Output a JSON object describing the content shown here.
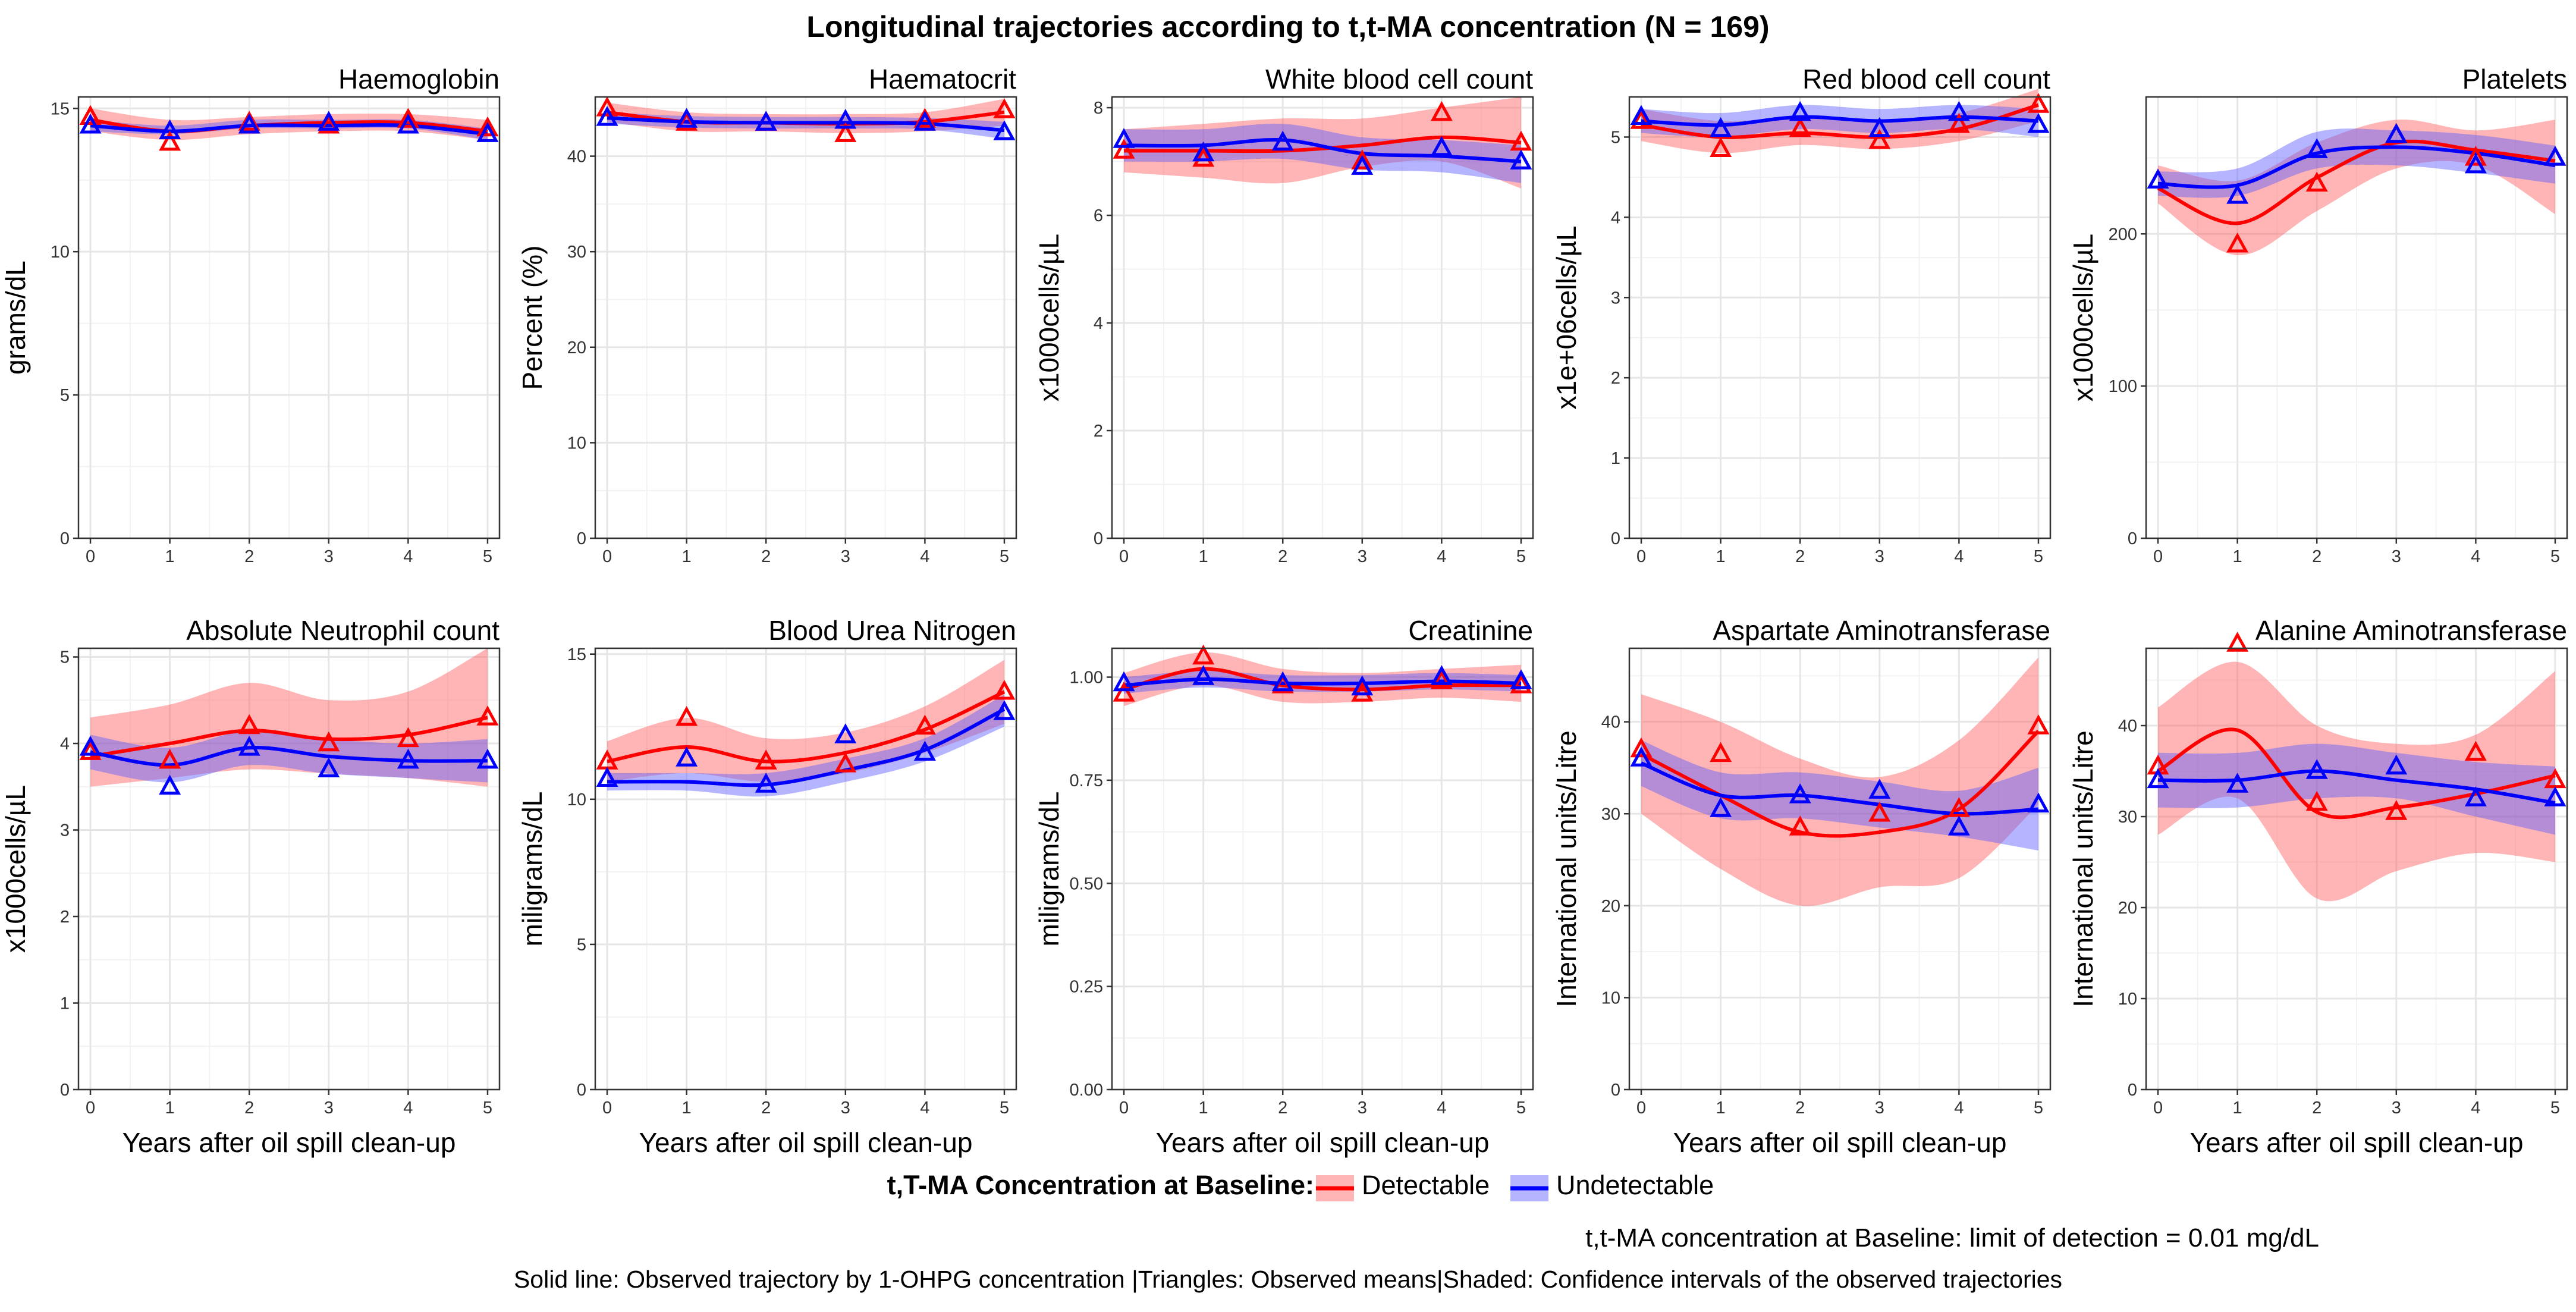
{
  "title": "Longitudinal trajectories according to t,t-MA concentration (N = 169)",
  "colors": {
    "detectable": "#ff0000",
    "undetectable": "#0000ff",
    "detectable_ribbon": "#ff5a5a",
    "undetectable_ribbon": "#5a5aff",
    "grid": "#e6e6e6",
    "border": "#333333"
  },
  "legend": {
    "title": "t,T-MA Concentration at Baseline:",
    "items": [
      {
        "label": "Detectable",
        "color": "#ff0000"
      },
      {
        "label": "Undetectable",
        "color": "#0000ff"
      }
    ]
  },
  "caption_line1": "t,t-MA concentration at Baseline: limit of detection = 0.01 mg/dL",
  "caption_line2": "Solid line: Observed trajectory by 1-OHPG concentration |Triangles: Observed means|Shaded: Confidence intervals of the observed trajectories",
  "chart_data": [
    {
      "type": "line",
      "title": "Haemoglobin",
      "xlabel": "",
      "ylabel": "grams/dL",
      "x": [
        0,
        1,
        2,
        3,
        4,
        5
      ],
      "xticks": [
        "0",
        "1",
        "2",
        "3",
        "4",
        "5"
      ],
      "ylim": [
        0,
        15.4
      ],
      "yticks": [
        0,
        5,
        10,
        15
      ],
      "ytick_labels": [
        "0",
        "5",
        "10",
        "15"
      ],
      "series": [
        {
          "name": "Detectable",
          "means": [
            14.7,
            13.8,
            14.5,
            14.4,
            14.6,
            14.3
          ],
          "line": [
            14.6,
            14.2,
            14.4,
            14.5,
            14.5,
            14.2
          ],
          "lower": [
            14.2,
            13.9,
            14.1,
            14.2,
            14.2,
            13.9
          ],
          "upper": [
            15.0,
            14.6,
            14.7,
            14.8,
            14.8,
            14.6
          ]
        },
        {
          "name": "Undetectable",
          "means": [
            14.4,
            14.2,
            14.4,
            14.5,
            14.4,
            14.1
          ],
          "line": [
            14.4,
            14.2,
            14.4,
            14.4,
            14.4,
            14.1
          ],
          "lower": [
            14.2,
            14.1,
            14.3,
            14.3,
            14.3,
            13.9
          ],
          "upper": [
            14.6,
            14.4,
            14.6,
            14.6,
            14.6,
            14.3
          ]
        }
      ]
    },
    {
      "type": "line",
      "title": "Haematocrit",
      "xlabel": "",
      "ylabel": "Percent (%)",
      "x": [
        0,
        1,
        2,
        3,
        4,
        5
      ],
      "xticks": [
        "0",
        "1",
        "2",
        "3",
        "4",
        "5"
      ],
      "ylim": [
        0,
        46.2
      ],
      "yticks": [
        0,
        10,
        20,
        30,
        40
      ],
      "ytick_labels": [
        "0",
        "10",
        "20",
        "30",
        "40"
      ],
      "series": [
        {
          "name": "Detectable",
          "means": [
            45.0,
            43.5,
            43.5,
            42.3,
            43.8,
            44.8
          ],
          "line": [
            44.6,
            43.6,
            43.5,
            43.4,
            43.6,
            44.6
          ],
          "lower": [
            43.6,
            42.6,
            42.6,
            42.4,
            42.6,
            43.2
          ],
          "upper": [
            45.6,
            44.6,
            44.4,
            44.4,
            44.6,
            46.0
          ]
        },
        {
          "name": "Undetectable",
          "means": [
            44.0,
            43.8,
            43.5,
            43.7,
            43.5,
            42.5
          ],
          "line": [
            44.0,
            43.6,
            43.5,
            43.5,
            43.4,
            42.7
          ],
          "lower": [
            43.4,
            43.0,
            42.9,
            42.9,
            42.8,
            41.8
          ],
          "upper": [
            44.6,
            44.2,
            44.1,
            44.1,
            44.0,
            43.6
          ]
        }
      ]
    },
    {
      "type": "line",
      "title": "White blood cell count",
      "xlabel": "",
      "ylabel": "x1000cells/µL",
      "x": [
        0,
        1,
        2,
        3,
        4,
        5
      ],
      "xticks": [
        "0",
        "1",
        "2",
        "3",
        "4",
        "5"
      ],
      "ylim": [
        0,
        8.2
      ],
      "yticks": [
        0,
        2,
        4,
        6,
        8
      ],
      "ytick_labels": [
        "0",
        "2",
        "4",
        "6",
        "8"
      ],
      "series": [
        {
          "name": "Detectable",
          "means": [
            7.2,
            7.05,
            7.35,
            7.0,
            7.9,
            7.35
          ],
          "line": [
            7.2,
            7.2,
            7.2,
            7.3,
            7.45,
            7.35
          ],
          "lower": [
            6.8,
            6.7,
            6.6,
            6.9,
            7.0,
            6.5
          ],
          "upper": [
            7.6,
            7.7,
            7.8,
            7.8,
            8.0,
            8.2
          ]
        },
        {
          "name": "Undetectable",
          "means": [
            7.4,
            7.15,
            7.35,
            6.9,
            7.25,
            7.0
          ],
          "line": [
            7.3,
            7.3,
            7.4,
            7.15,
            7.1,
            7.0
          ],
          "lower": [
            7.0,
            7.0,
            7.05,
            6.85,
            6.8,
            6.6
          ],
          "upper": [
            7.6,
            7.6,
            7.7,
            7.45,
            7.4,
            7.3
          ]
        }
      ]
    },
    {
      "type": "line",
      "title": "Red blood cell count",
      "xlabel": "",
      "ylabel": "x1e+06cells/µL",
      "x": [
        0,
        1,
        2,
        3,
        4,
        5
      ],
      "xticks": [
        "0",
        "1",
        "2",
        "3",
        "4",
        "5"
      ],
      "ylim": [
        0,
        5.5
      ],
      "yticks": [
        0,
        1,
        2,
        3,
        4,
        5
      ],
      "ytick_labels": [
        "0",
        "1",
        "2",
        "3",
        "4",
        "5"
      ],
      "series": [
        {
          "name": "Detectable",
          "means": [
            5.2,
            4.85,
            5.1,
            4.95,
            5.15,
            5.4
          ],
          "line": [
            5.15,
            5.0,
            5.05,
            5.0,
            5.1,
            5.4
          ],
          "lower": [
            4.95,
            4.8,
            4.9,
            4.85,
            4.95,
            5.2
          ],
          "upper": [
            5.35,
            5.2,
            5.25,
            5.2,
            5.3,
            5.6
          ]
        },
        {
          "name": "Undetectable",
          "means": [
            5.25,
            5.1,
            5.3,
            5.1,
            5.3,
            5.15
          ],
          "line": [
            5.2,
            5.15,
            5.25,
            5.2,
            5.25,
            5.2
          ],
          "lower": [
            5.05,
            5.0,
            5.1,
            5.05,
            5.1,
            5.0
          ],
          "upper": [
            5.35,
            5.3,
            5.4,
            5.35,
            5.4,
            5.35
          ]
        }
      ]
    },
    {
      "type": "line",
      "title": "Platelets",
      "xlabel": "",
      "ylabel": "x1000cells/µL",
      "x": [
        0,
        1,
        2,
        3,
        4,
        5
      ],
      "xticks": [
        "0",
        "1",
        "2",
        "3",
        "4",
        "5"
      ],
      "ylim": [
        0,
        290
      ],
      "yticks": [
        0,
        100,
        200
      ],
      "ytick_labels": [
        "0",
        "100",
        "200"
      ],
      "series": [
        {
          "name": "Detectable",
          "means": [
            235,
            193,
            233,
            265,
            250,
            250
          ],
          "line": [
            230,
            207,
            237,
            260,
            255,
            248
          ],
          "lower": [
            220,
            186,
            215,
            243,
            245,
            213
          ],
          "upper": [
            245,
            235,
            260,
            275,
            268,
            275
          ]
        },
        {
          "name": "Undetectable",
          "means": [
            235,
            225,
            255,
            265,
            245,
            250
          ],
          "line": [
            233,
            232,
            253,
            257,
            253,
            245
          ],
          "lower": [
            225,
            225,
            243,
            245,
            240,
            233
          ],
          "upper": [
            241,
            243,
            267,
            268,
            265,
            258
          ]
        }
      ]
    },
    {
      "type": "line",
      "title": "Absolute Neutrophil count",
      "xlabel": "Years after oil spill clean-up",
      "ylabel": "x1000cells/µL",
      "x": [
        0,
        1,
        2,
        3,
        4,
        5
      ],
      "xticks": [
        "0",
        "1",
        "2",
        "3",
        "4",
        "5"
      ],
      "ylim": [
        0,
        5.1
      ],
      "yticks": [
        0,
        1,
        2,
        3,
        4,
        5
      ],
      "ytick_labels": [
        "0",
        "1",
        "2",
        "3",
        "4",
        "5"
      ],
      "series": [
        {
          "name": "Detectable",
          "means": [
            3.9,
            3.8,
            4.2,
            4.0,
            4.05,
            4.3
          ],
          "line": [
            3.85,
            4.0,
            4.15,
            4.05,
            4.1,
            4.3
          ],
          "lower": [
            3.5,
            3.6,
            3.7,
            3.65,
            3.6,
            3.5
          ],
          "upper": [
            4.3,
            4.45,
            4.7,
            4.5,
            4.6,
            5.1
          ]
        },
        {
          "name": "Undetectable",
          "means": [
            3.95,
            3.5,
            3.95,
            3.7,
            3.8,
            3.8
          ],
          "line": [
            3.9,
            3.75,
            3.95,
            3.85,
            3.8,
            3.8
          ],
          "lower": [
            3.7,
            3.55,
            3.75,
            3.65,
            3.6,
            3.55
          ],
          "upper": [
            4.1,
            3.95,
            4.15,
            4.05,
            4.0,
            4.05
          ]
        }
      ]
    },
    {
      "type": "line",
      "title": "Blood Urea Nitrogen",
      "xlabel": "Years after oil spill clean-up",
      "ylabel": "miligrams/dL",
      "x": [
        0,
        1,
        2,
        3,
        4,
        5
      ],
      "xticks": [
        "0",
        "1",
        "2",
        "3",
        "4",
        "5"
      ],
      "ylim": [
        0,
        15.2
      ],
      "yticks": [
        0,
        5,
        10,
        15
      ],
      "ytick_labels": [
        "0",
        "5",
        "10",
        "15"
      ],
      "series": [
        {
          "name": "Detectable",
          "means": [
            11.3,
            12.8,
            11.3,
            11.2,
            12.5,
            13.7
          ],
          "line": [
            11.3,
            11.8,
            11.3,
            11.6,
            12.4,
            13.7
          ],
          "lower": [
            10.6,
            10.9,
            10.6,
            10.9,
            11.6,
            12.6
          ],
          "upper": [
            12.0,
            12.8,
            12.1,
            12.3,
            13.2,
            14.8
          ]
        },
        {
          "name": "Undetectable",
          "means": [
            10.7,
            11.4,
            10.5,
            12.2,
            11.6,
            13.0
          ],
          "line": [
            10.6,
            10.6,
            10.5,
            11.0,
            11.7,
            13.1
          ],
          "lower": [
            10.3,
            10.3,
            10.1,
            10.6,
            11.3,
            12.5
          ],
          "upper": [
            10.9,
            10.9,
            10.9,
            11.4,
            12.1,
            13.6
          ]
        }
      ]
    },
    {
      "type": "line",
      "title": "Creatinine",
      "xlabel": "Years after oil spill clean-up",
      "ylabel": "miligrams/dL",
      "x": [
        0,
        1,
        2,
        3,
        4,
        5
      ],
      "xticks": [
        "0",
        "1",
        "2",
        "3",
        "4",
        "5"
      ],
      "ylim": [
        0,
        1.07
      ],
      "yticks": [
        0,
        0.25,
        0.5,
        0.75,
        1.0
      ],
      "ytick_labels": [
        "0.00",
        "0.25",
        "0.50",
        "0.75",
        "1.00"
      ],
      "series": [
        {
          "name": "Detectable",
          "means": [
            0.96,
            1.05,
            0.98,
            0.96,
            0.99,
            0.98
          ],
          "line": [
            0.97,
            1.02,
            0.98,
            0.97,
            0.98,
            0.98
          ],
          "lower": [
            0.93,
            0.98,
            0.94,
            0.94,
            0.95,
            0.94
          ],
          "upper": [
            1.01,
            1.06,
            1.02,
            1.01,
            1.02,
            1.03
          ]
        },
        {
          "name": "Undetectable",
          "means": [
            0.985,
            1.0,
            0.985,
            0.975,
            1.0,
            0.99
          ],
          "line": [
            0.98,
            0.995,
            0.985,
            0.985,
            0.99,
            0.985
          ],
          "lower": [
            0.96,
            0.975,
            0.965,
            0.965,
            0.97,
            0.965
          ],
          "upper": [
            1.0,
            1.015,
            1.005,
            1.005,
            1.01,
            1.005
          ]
        }
      ]
    },
    {
      "type": "line",
      "title": "Aspartate Aminotransferase",
      "xlabel": "Years after oil spill clean-up",
      "ylabel": "International units/Litre",
      "x": [
        0,
        1,
        2,
        3,
        4,
        5
      ],
      "xticks": [
        "0",
        "1",
        "2",
        "3",
        "4",
        "5"
      ],
      "ylim": [
        0,
        48
      ],
      "yticks": [
        0,
        10,
        20,
        30,
        40
      ],
      "ytick_labels": [
        "0",
        "10",
        "20",
        "30",
        "40"
      ],
      "series": [
        {
          "name": "Detectable",
          "means": [
            37,
            36.5,
            28.5,
            30,
            30.5,
            39.5
          ],
          "line": [
            36.5,
            32,
            28,
            28,
            30.5,
            39
          ],
          "lower": [
            30,
            24,
            20,
            22,
            23,
            31
          ],
          "upper": [
            43,
            40,
            36,
            34,
            38,
            47
          ]
        },
        {
          "name": "Undetectable",
          "means": [
            36,
            30.5,
            32,
            32.5,
            28.5,
            31
          ],
          "line": [
            35.5,
            32,
            32,
            31,
            30,
            30.5
          ],
          "lower": [
            33,
            29.5,
            29.5,
            28.5,
            27.5,
            26
          ],
          "upper": [
            38,
            34.5,
            34.5,
            33.5,
            32.5,
            35
          ]
        }
      ]
    },
    {
      "type": "line",
      "title": "Alanine Aminotransferase",
      "xlabel": "Years after oil spill clean-up",
      "ylabel": "International units/Litre",
      "x": [
        0,
        1,
        2,
        3,
        4,
        5
      ],
      "xticks": [
        "0",
        "1",
        "2",
        "3",
        "4",
        "5"
      ],
      "ylim": [
        0,
        48.5
      ],
      "yticks": [
        0,
        10,
        20,
        30,
        40
      ],
      "ytick_labels": [
        "0",
        "10",
        "20",
        "30",
        "40"
      ],
      "series": [
        {
          "name": "Detectable",
          "means": [
            35.5,
            49,
            31.5,
            30.5,
            37,
            34
          ],
          "line": [
            35,
            39.5,
            30.5,
            31,
            32.5,
            34.5
          ],
          "lower": [
            28,
            32,
            21,
            24,
            26,
            25
          ],
          "upper": [
            42,
            47,
            40,
            38,
            39,
            46
          ]
        },
        {
          "name": "Undetectable",
          "means": [
            34,
            33.5,
            35,
            35.5,
            32,
            32
          ],
          "line": [
            34,
            34,
            35,
            34,
            33,
            31.5
          ],
          "lower": [
            31,
            31,
            32,
            32,
            30,
            28
          ],
          "upper": [
            37,
            37,
            38,
            37,
            36,
            35.5
          ]
        }
      ]
    }
  ]
}
